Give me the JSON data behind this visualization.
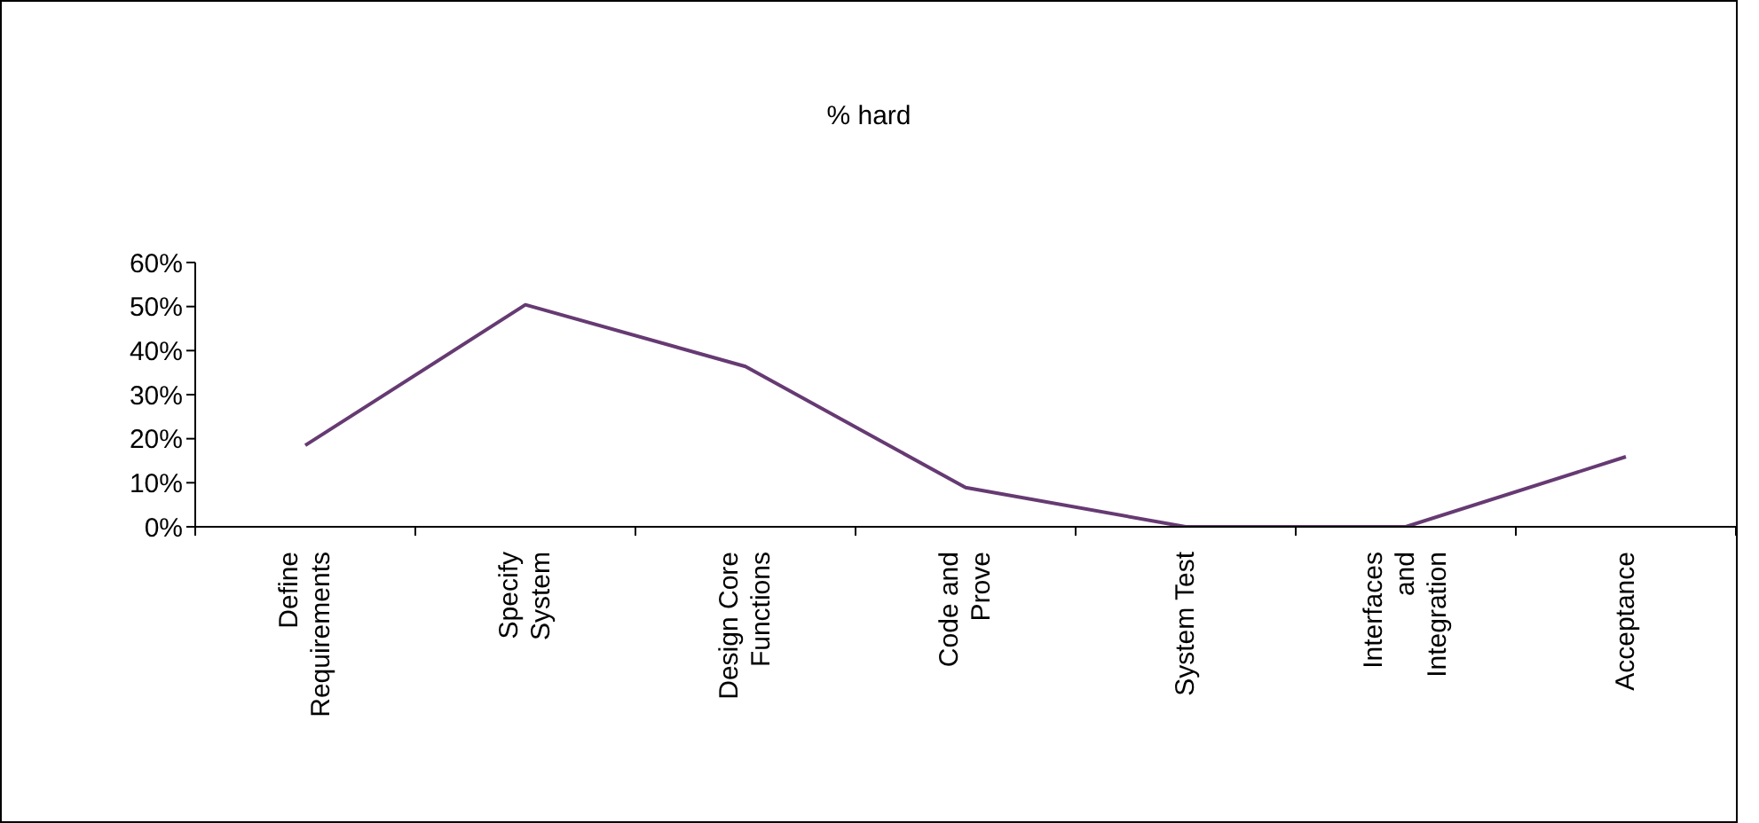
{
  "chart_data": {
    "type": "line",
    "title": "% hard",
    "categories": [
      "Define Requirements",
      "Specify System",
      "Design Core Functions",
      "Code and Prove",
      "System Test",
      "Interfaces and Integration",
      "Acceptance"
    ],
    "series": [
      {
        "color": "#663a73",
        "values": [
          18.5,
          50.4,
          36.4,
          8.9,
          0,
          0,
          15.9
        ]
      }
    ],
    "ylim": [
      0,
      60
    ],
    "yticks": [
      {
        "value": 0,
        "label": "0%"
      },
      {
        "value": 10,
        "label": "10%"
      },
      {
        "value": 20,
        "label": "20%"
      },
      {
        "value": 30,
        "label": "30%"
      },
      {
        "value": 40,
        "label": "40%"
      },
      {
        "value": 50,
        "label": "50%"
      },
      {
        "value": 60,
        "label": "60%"
      }
    ],
    "grid": false,
    "legend": false,
    "marker": "none",
    "line_style": "solid"
  }
}
